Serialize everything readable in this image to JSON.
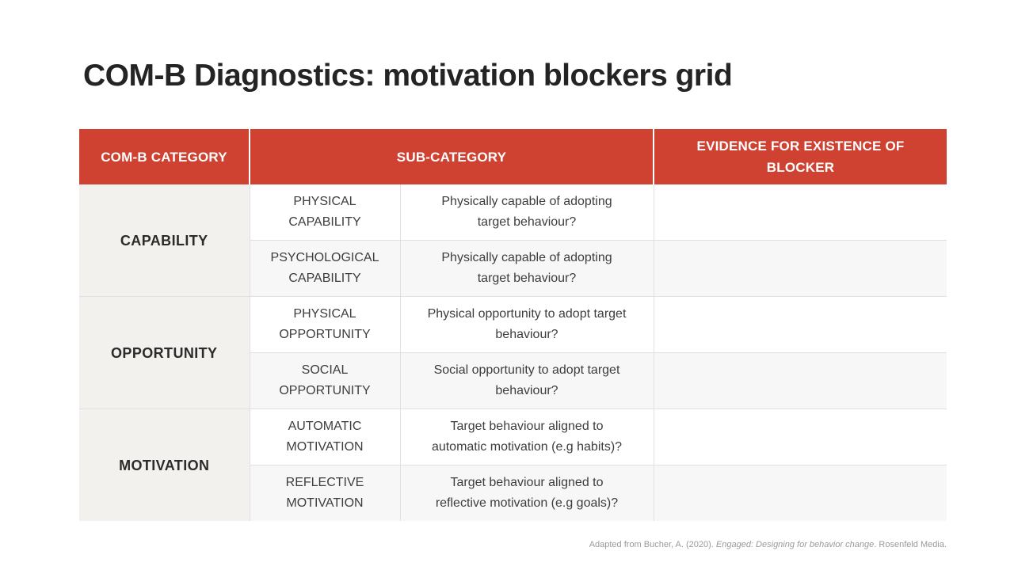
{
  "slide": {
    "title": "COM-B Diagnostics: motivation blockers grid"
  },
  "table": {
    "headers": [
      "COM-B CATEGORY",
      "SUB-CATEGORY",
      "EVIDENCE FOR EXISTENCE OF\nBLOCKER"
    ],
    "groups": [
      {
        "category": "CAPABILITY",
        "rows": [
          {
            "sub_category": "PHYSICAL\nCAPABILITY",
            "question": "Physically capable of adopting\ntarget behaviour?",
            "evidence": ""
          },
          {
            "sub_category": "PSYCHOLOGICAL\nCAPABILITY",
            "question": "Physically capable of adopting\ntarget behaviour?",
            "evidence": ""
          }
        ]
      },
      {
        "category": "OPPORTUNITY",
        "rows": [
          {
            "sub_category": "PHYSICAL\nOPPORTUNITY",
            "question": "Physical opportunity to adopt target\nbehaviour?",
            "evidence": ""
          },
          {
            "sub_category": "SOCIAL\nOPPORTUNITY",
            "question": "Social opportunity to adopt target\nbehaviour?",
            "evidence": ""
          }
        ]
      },
      {
        "category": "MOTIVATION",
        "rows": [
          {
            "sub_category": "AUTOMATIC\nMOTIVATION",
            "question": "Target behaviour aligned to\nautomatic motivation (e.g habits)?",
            "evidence": ""
          },
          {
            "sub_category": "REFLECTIVE\nMOTIVATION",
            "question": "Target behaviour aligned to\nreflective motivation (e.g goals)?",
            "evidence": ""
          }
        ]
      }
    ]
  },
  "footer": {
    "prefix": "Adapted from Bucher, A. (2020). ",
    "italic_title": "Engaged: Designing for behavior change",
    "suffix": ". Rosenfeld Media."
  },
  "colors": {
    "header_bg": "#CF4232",
    "header_text": "#FFFFFF",
    "category_cell_bg": "#F3F1EE",
    "alt_row_bg": "#F7F7F7",
    "border": "#E1E0DE",
    "title_text": "#242424",
    "body_text": "#3D3D3D",
    "footer_text": "#9A9A9A"
  }
}
